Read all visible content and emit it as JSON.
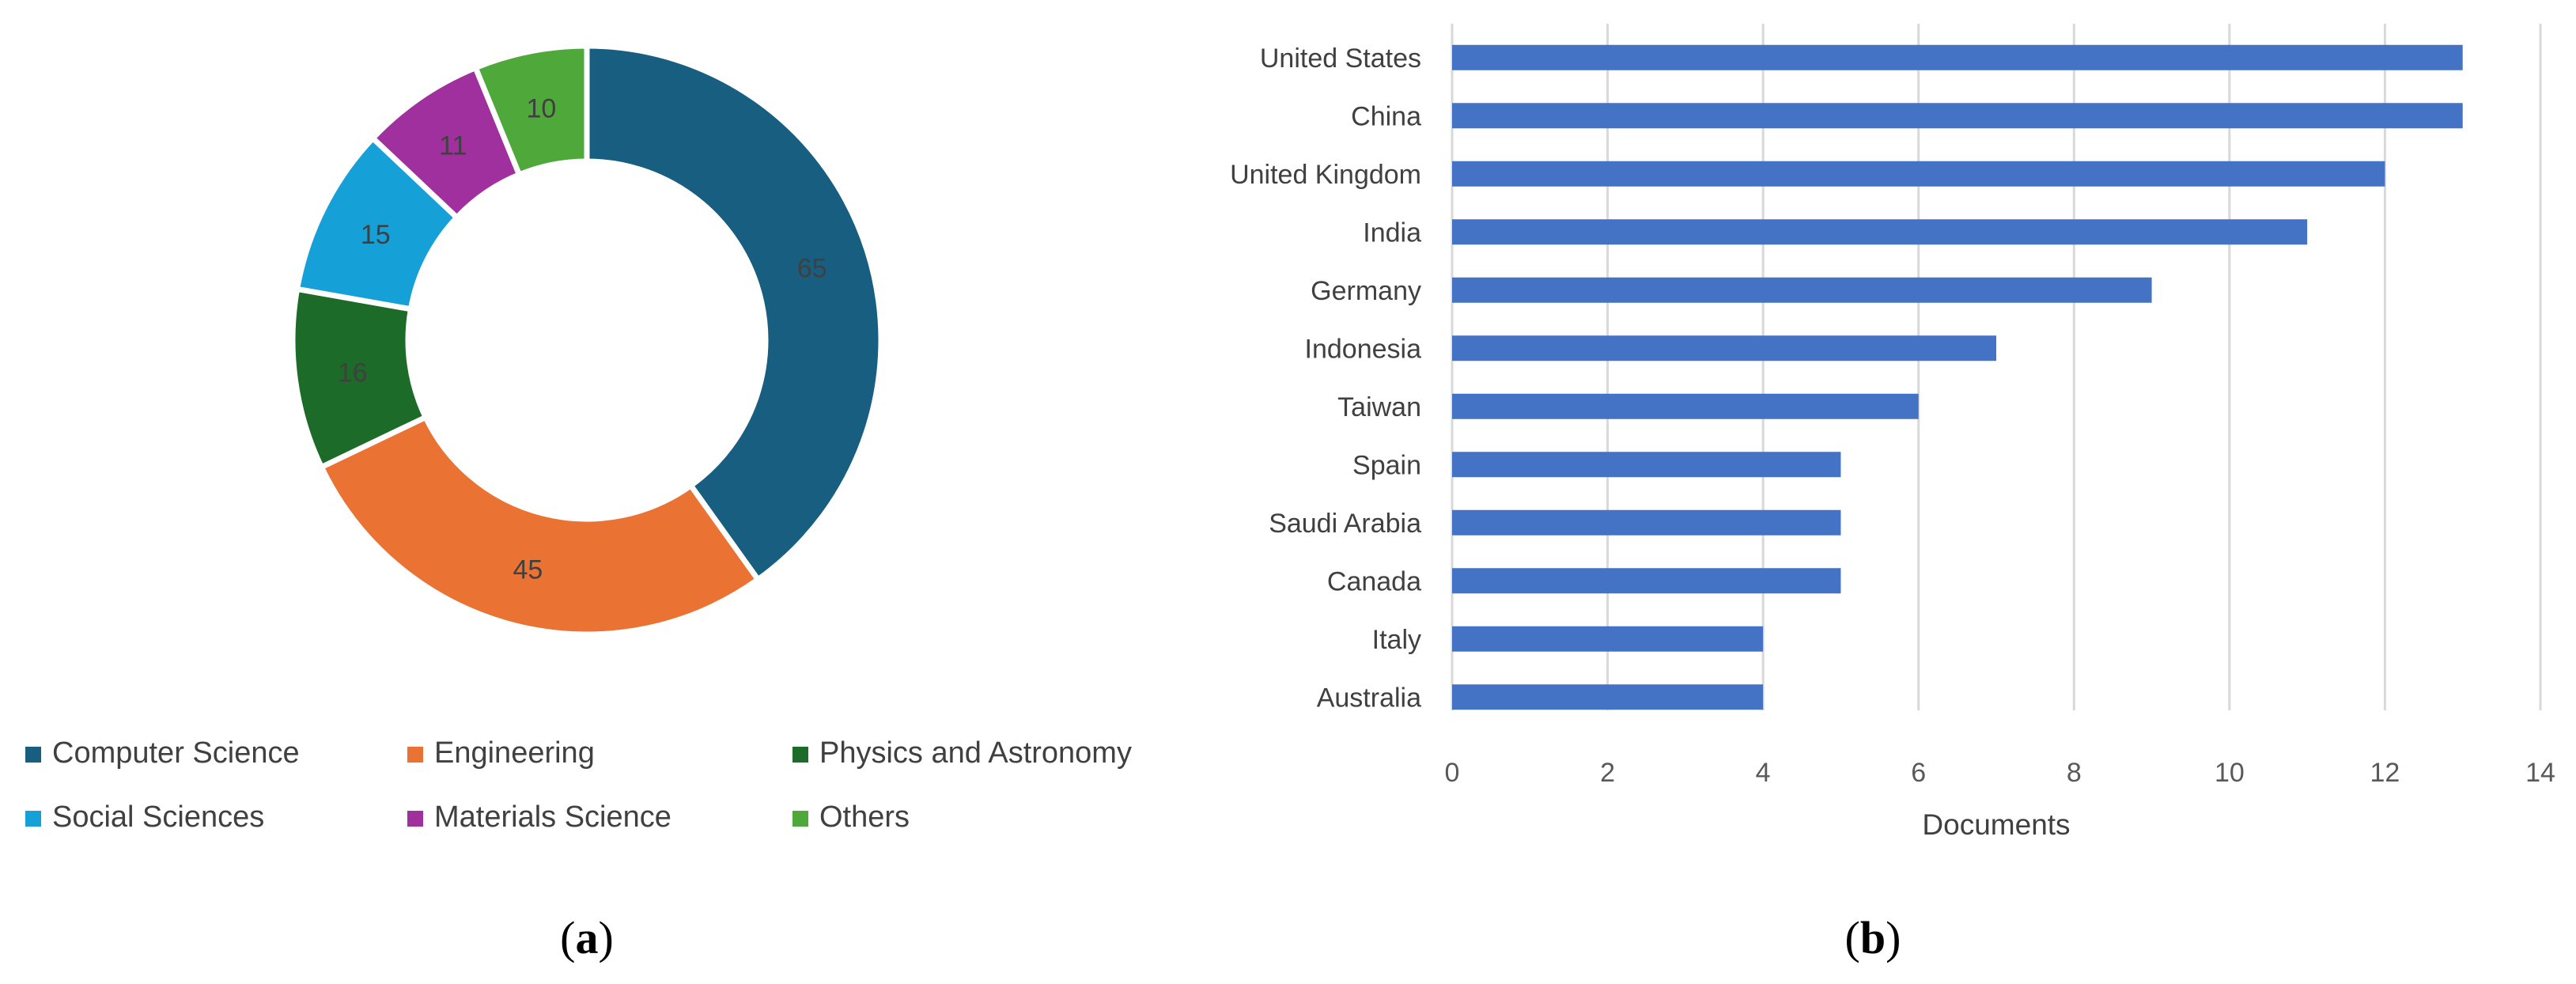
{
  "panels": {
    "a": "a",
    "b": "b"
  },
  "chart_data": [
    {
      "type": "pie",
      "variant": "donut",
      "categories": [
        "Computer Science",
        "Engineering",
        "Physics and Astronomy",
        "Social Sciences",
        "Materials Science",
        "Others"
      ],
      "values": [
        65,
        45,
        16,
        15,
        11,
        10
      ],
      "data_labels": [
        "65",
        "45",
        "16",
        "15",
        "11",
        "10"
      ],
      "colors": [
        "#175e80",
        "#ea7232",
        "#1c6b28",
        "#16a0d8",
        "#a0309e",
        "#4fa83a"
      ],
      "legend_placement": "bottom",
      "start_angle_deg": 0,
      "direction": "clockwise"
    },
    {
      "type": "bar",
      "orientation": "horizontal",
      "categories": [
        "United States",
        "China",
        "United Kingdom",
        "India",
        "Germany",
        "Indonesia",
        "Taiwan",
        "Spain",
        "Saudi Arabia",
        "Canada",
        "Italy",
        "Australia"
      ],
      "values": [
        13,
        13,
        12,
        11,
        9,
        7,
        6,
        5,
        5,
        5,
        4,
        4
      ],
      "xlabel": "Documents",
      "ylabel": "",
      "xlim": [
        0,
        14
      ],
      "xticks": [
        "0",
        "2",
        "4",
        "6",
        "8",
        "10",
        "12",
        "14"
      ],
      "grid": "vertical",
      "bar_color": "#4472c4"
    }
  ]
}
